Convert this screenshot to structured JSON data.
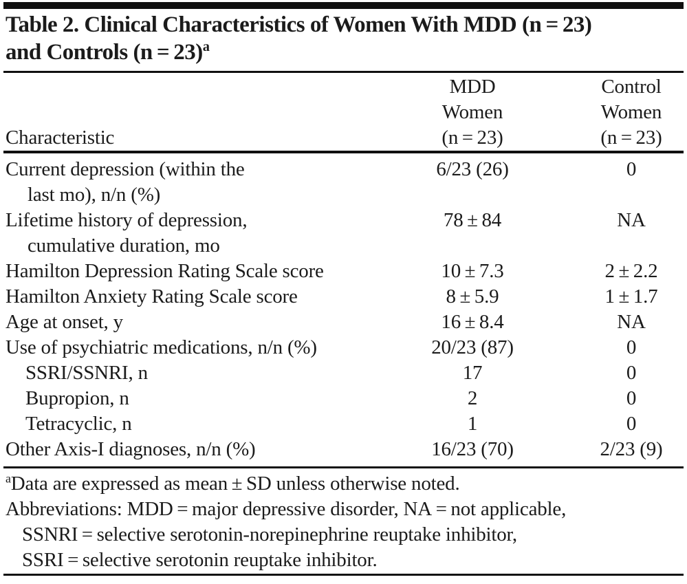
{
  "colors": {
    "text": "#1b1b1b",
    "rule": "#101010",
    "background": "#ffffff"
  },
  "title": {
    "line1": "Table 2. Clinical Characteristics of Women With MDD (n = 23)",
    "line2": "and Controls (n = 23)",
    "superscript": "a"
  },
  "header": {
    "characteristic": "Characteristic",
    "mdd_lines": [
      "MDD",
      "Women",
      "(n = 23)"
    ],
    "control_lines": [
      "Control",
      "Women",
      "(n = 23)"
    ]
  },
  "table": {
    "rows": [
      {
        "label": "Current depression (within the",
        "label2": "last mo), n/n (%)",
        "mdd": "6/23 (26)",
        "control": "0"
      },
      {
        "label": "Lifetime history of depression,",
        "label2": "cumulative duration, mo",
        "mdd": "78 ± 84",
        "control": "NA"
      },
      {
        "label": "Hamilton Depression Rating Scale score",
        "mdd": "10 ± 7.3",
        "control": "2 ± 2.2"
      },
      {
        "label": "Hamilton Anxiety Rating Scale score",
        "mdd": "8 ± 5.9",
        "control": "1 ± 1.7"
      },
      {
        "label": "Age at onset, y",
        "mdd": "16 ± 8.4",
        "control": "NA"
      },
      {
        "label": "Use of psychiatric medications, n/n (%)",
        "mdd": "20/23 (87)",
        "control": "0"
      },
      {
        "label": "SSRI/SSNRI, n",
        "mdd": "17",
        "control": "0"
      },
      {
        "label": "Bupropion, n",
        "mdd": "2",
        "control": "0"
      },
      {
        "label": "Tetracyclic, n",
        "mdd": "1",
        "control": "0"
      },
      {
        "label": "Other Axis-I diagnoses, n/n (%)",
        "mdd": "16/23 (70)",
        "control": "2/23 (9)"
      }
    ]
  },
  "footnotes": {
    "data_note_sup": "a",
    "data_note": "Data are expressed as mean ± SD unless otherwise noted.",
    "abbrev_line1": "Abbreviations: MDD = major depressive disorder, NA = not applicable,",
    "abbrev_line2": "SSNRI = selective serotonin-norepinephrine reuptake inhibitor,",
    "abbrev_line3": "SSRI = selective serotonin reuptake inhibitor."
  }
}
